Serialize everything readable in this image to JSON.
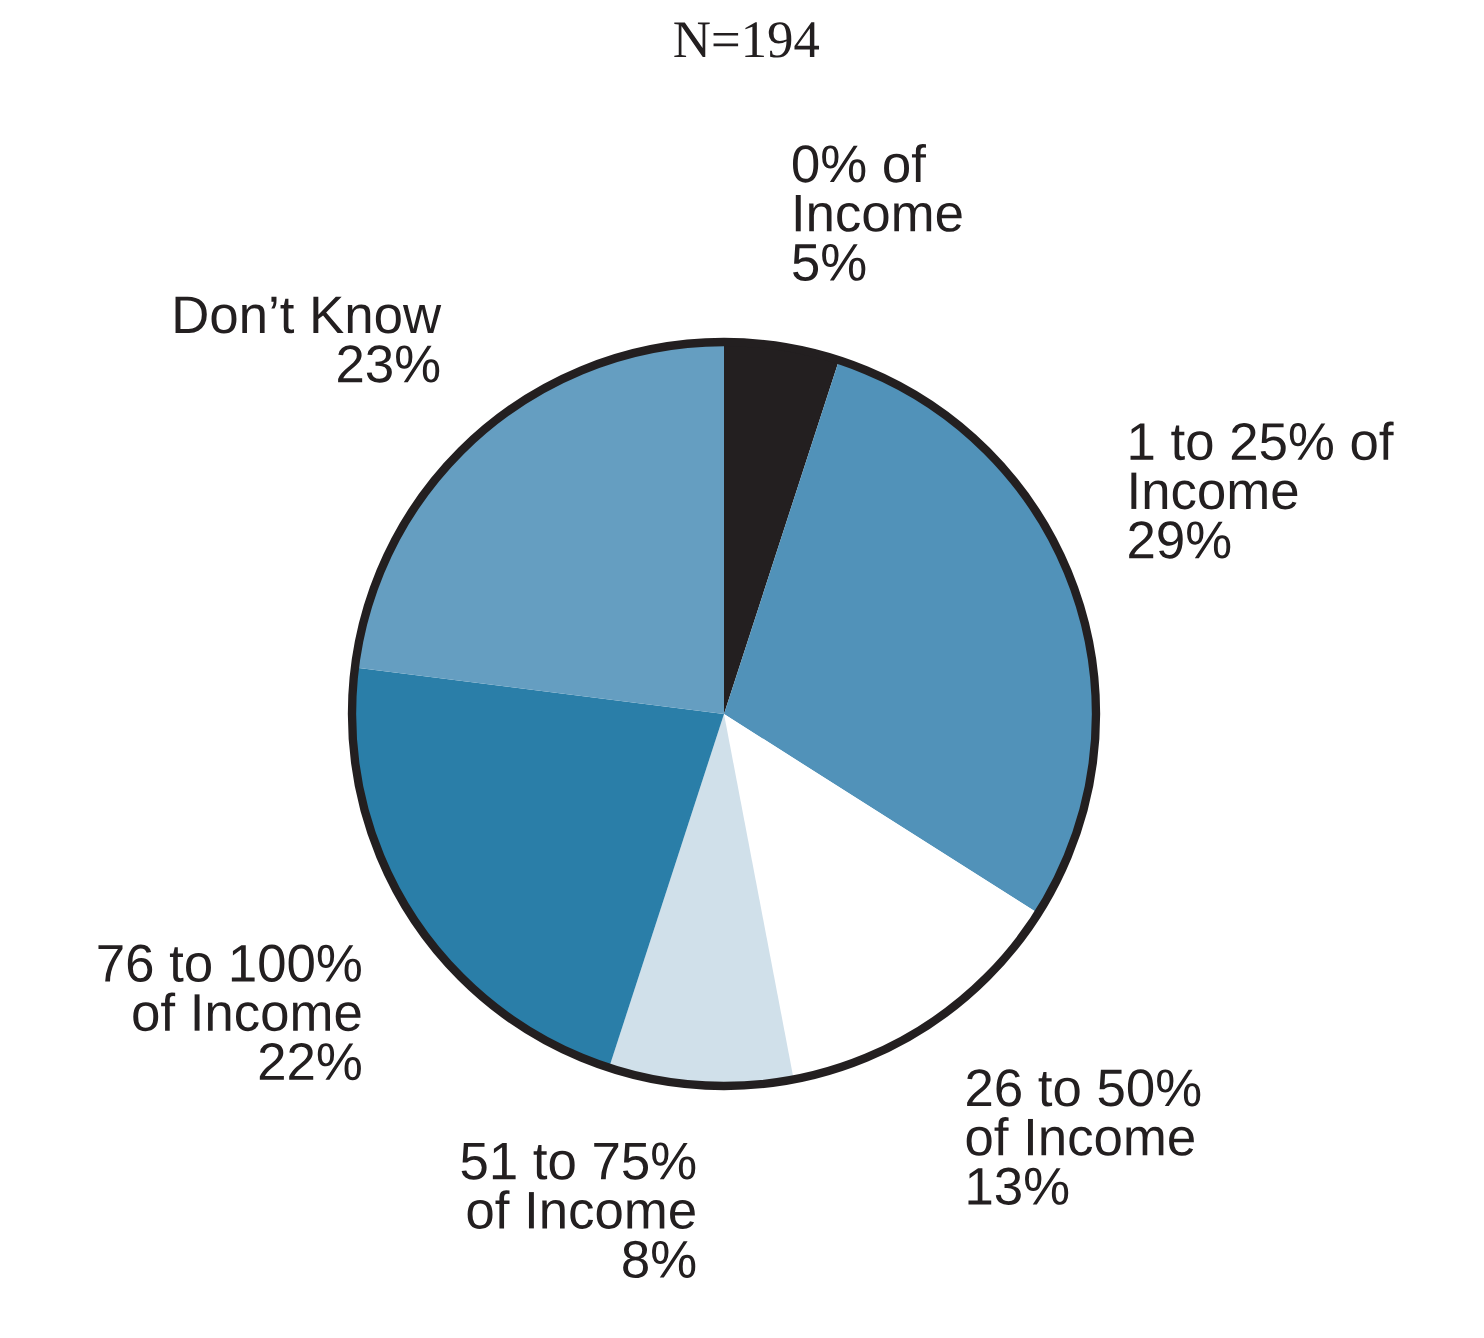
{
  "chart_data": {
    "type": "pie",
    "title": "N=194",
    "categories": [
      "0% of\nIncome",
      "1 to 25% of\nIncome",
      "26 to 50%\nof Income",
      "51 to 75%\nof Income",
      "76 to 100%\nof Income",
      "Don’t Know"
    ],
    "values": [
      5,
      29,
      13,
      8,
      22,
      23
    ],
    "colors": [
      "#231f20",
      "#5192b9",
      "#ffffff",
      "#d0e0ea",
      "#2a7ea8",
      "#659ec1"
    ],
    "value_labels": [
      "5%",
      "29%",
      "13%",
      "8%",
      "22%",
      "23%"
    ]
  }
}
